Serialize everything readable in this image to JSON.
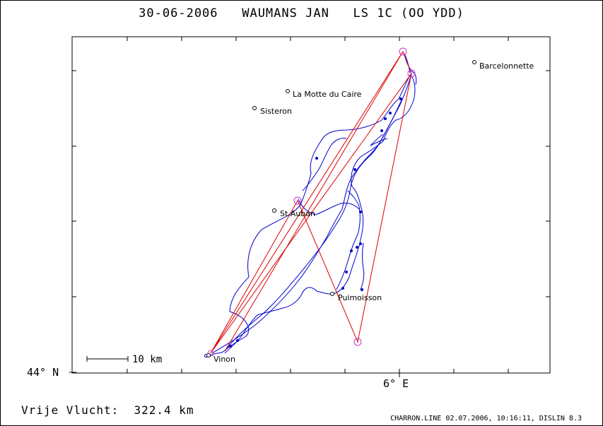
{
  "title": "30-06-2006   WAUMANS JAN   LS 1C (OO YDD)",
  "axes": {
    "lat_label": "44° N",
    "lon_label": "6° E"
  },
  "scale_bar": {
    "label": "10 km"
  },
  "places": [
    {
      "name": "Barcelonnette"
    },
    {
      "name": "La Motte du Caire"
    },
    {
      "name": "Sisteron"
    },
    {
      "name": "St.Auban"
    },
    {
      "name": "Puimoisson"
    },
    {
      "name": "Vinon"
    }
  ],
  "summary": {
    "label": "Vrije Vlucht:",
    "value": "322.4 km"
  },
  "footer": "CHARRON.LINE 02.07.2006, 10:16:11, DISLIN 8.3",
  "colors": {
    "track": "#0000cc",
    "task_line": "#dd0000",
    "turnpoint": "#cc33cc",
    "frame": "#000000"
  }
}
